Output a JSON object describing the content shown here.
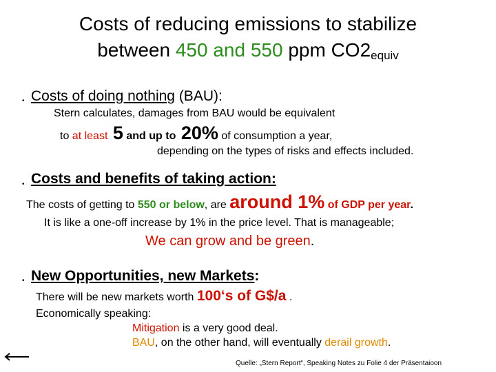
{
  "title": {
    "line1": "Costs of reducing emissions to stabilize",
    "line2_pre": "between ",
    "line2_range": "450 and 550",
    "line2_post": " ppm CO2",
    "line2_sub": "equiv"
  },
  "section1": {
    "bullet": "•",
    "heading_underlined": "Costs of doing nothing",
    "heading_rest": " (BAU):",
    "line1": "Stern calculates, damages from BAU would  be equivalent",
    "line2_pre": "to ",
    "line2_atleast": "at least",
    "line2_5": " 5",
    "line2_mid": " and up to",
    "line2_20": " 20%",
    "line2_post": " of consumption a year,",
    "line3": "depending on the types of risks and effects included."
  },
  "section2": {
    "bullet": "•",
    "heading": "Costs and benefits of taking action:",
    "line1_pre": "The costs of getting to ",
    "line1_550": "550 or below",
    "line1_mid": ", are ",
    "line1_around": "around 1%",
    "line1_post": " of GDP per year",
    "line1_dot": ".",
    "line2": "It is like a one-off increase by 1% in the price level. That is manageable;",
    "line3": "We can grow and be green",
    "line3_dot": "."
  },
  "section3": {
    "bullet": "•",
    "heading": "New Opportunities, new Markets",
    "heading_colon": ":",
    "line1_pre": "There will be new markets worth  ",
    "line1_value": "100‘s of G$/a",
    "line1_post": " .",
    "line2": "Economically speaking:",
    "line3_red": "Mitigation",
    "line3_rest": " is a very good deal.",
    "line4_bau": "BAU",
    "line4_mid": ", on the other hand, will eventually ",
    "line4_derail": "derail growth",
    "line4_dot": "."
  },
  "footer": {
    "source": "Quelle: „Stern Report“, Speaking Notes zu Folie 4 der Präsentaioon",
    "back_arrow_icon": "left-arrow-icon"
  },
  "colors": {
    "green": "#2e8b1e",
    "red": "#cc1100",
    "orange": "#e08a00"
  }
}
